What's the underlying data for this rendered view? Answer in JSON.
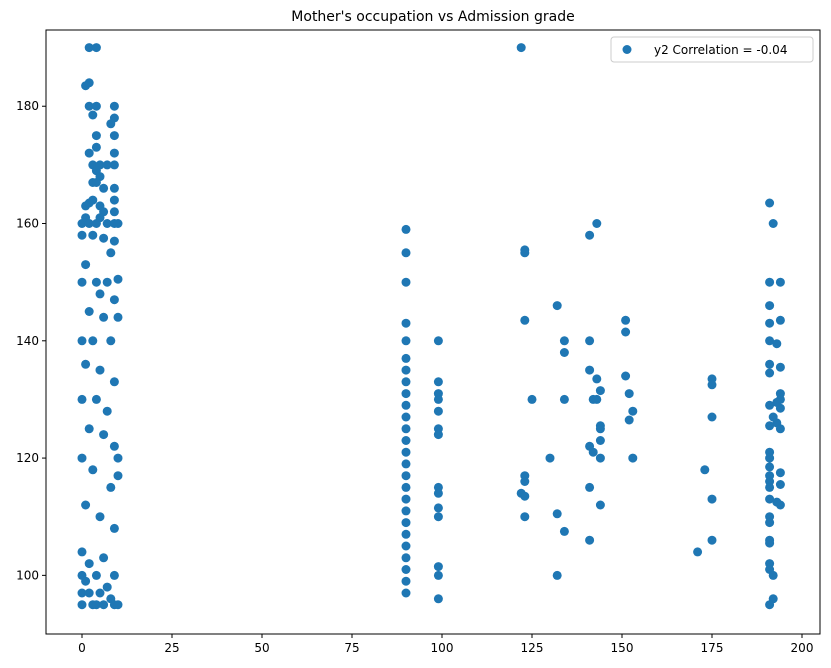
{
  "chart_data": {
    "type": "scatter",
    "title": "Mother's occupation vs Admission grade",
    "xlabel": "",
    "ylabel": "",
    "xlim": [
      -10,
      205
    ],
    "ylim": [
      90,
      193
    ],
    "x_ticks": [
      0,
      25,
      50,
      75,
      100,
      125,
      150,
      175,
      200
    ],
    "y_ticks": [
      100,
      120,
      140,
      160,
      180
    ],
    "grid": false,
    "legend_position": "top-right",
    "point_color": "#1f77b4",
    "series": [
      {
        "name": "y2 Correlation = -0.04",
        "points": [
          [
            2,
            190
          ],
          [
            4,
            190
          ],
          [
            1,
            183.5
          ],
          [
            2,
            184
          ],
          [
            2,
            180
          ],
          [
            4,
            180
          ],
          [
            3,
            178.5
          ],
          [
            9,
            180
          ],
          [
            9,
            178
          ],
          [
            8,
            177
          ],
          [
            9,
            175
          ],
          [
            4,
            175
          ],
          [
            4,
            173
          ],
          [
            2,
            172
          ],
          [
            9,
            172
          ],
          [
            3,
            170
          ],
          [
            5,
            170
          ],
          [
            7,
            170
          ],
          [
            9,
            170
          ],
          [
            4,
            169
          ],
          [
            5,
            168
          ],
          [
            3,
            167
          ],
          [
            4,
            167
          ],
          [
            6,
            166
          ],
          [
            9,
            166
          ],
          [
            1,
            163
          ],
          [
            2,
            163.5
          ],
          [
            3,
            164
          ],
          [
            5,
            163
          ],
          [
            6,
            162
          ],
          [
            9,
            164
          ],
          [
            9,
            162
          ],
          [
            0,
            160
          ],
          [
            1,
            161
          ],
          [
            2,
            160
          ],
          [
            4,
            160
          ],
          [
            5,
            161
          ],
          [
            7,
            160
          ],
          [
            9,
            160
          ],
          [
            10,
            160
          ],
          [
            0,
            158
          ],
          [
            3,
            158
          ],
          [
            6,
            157.5
          ],
          [
            9,
            157
          ],
          [
            8,
            155
          ],
          [
            1,
            153
          ],
          [
            0,
            150
          ],
          [
            4,
            150
          ],
          [
            7,
            150
          ],
          [
            10,
            150.5
          ],
          [
            5,
            148
          ],
          [
            9,
            147
          ],
          [
            2,
            145
          ],
          [
            6,
            144
          ],
          [
            10,
            144
          ],
          [
            0,
            140
          ],
          [
            3,
            140
          ],
          [
            8,
            140
          ],
          [
            1,
            136
          ],
          [
            5,
            135
          ],
          [
            9,
            133
          ],
          [
            0,
            130
          ],
          [
            4,
            130
          ],
          [
            7,
            128
          ],
          [
            10,
            120
          ],
          [
            10,
            117
          ],
          [
            2,
            125
          ],
          [
            6,
            124
          ],
          [
            9,
            122
          ],
          [
            0,
            120
          ],
          [
            3,
            118
          ],
          [
            8,
            115
          ],
          [
            1,
            112
          ],
          [
            5,
            110
          ],
          [
            9,
            108
          ],
          [
            0,
            104
          ],
          [
            2,
            102
          ],
          [
            6,
            103
          ],
          [
            0,
            100
          ],
          [
            4,
            100
          ],
          [
            9,
            100
          ],
          [
            1,
            99
          ],
          [
            7,
            98
          ],
          [
            0,
            97
          ],
          [
            2,
            97
          ],
          [
            5,
            97
          ],
          [
            8,
            96
          ],
          [
            0,
            95
          ],
          [
            3,
            95
          ],
          [
            4,
            95
          ],
          [
            6,
            95
          ],
          [
            9,
            95
          ],
          [
            10,
            95
          ],
          [
            90,
            159
          ],
          [
            90,
            155
          ],
          [
            90,
            150
          ],
          [
            90,
            143
          ],
          [
            90,
            140
          ],
          [
            90,
            137
          ],
          [
            90,
            135
          ],
          [
            90,
            133
          ],
          [
            90,
            131
          ],
          [
            90,
            129
          ],
          [
            90,
            127
          ],
          [
            90,
            125
          ],
          [
            90,
            123
          ],
          [
            90,
            121
          ],
          [
            90,
            119
          ],
          [
            90,
            117
          ],
          [
            90,
            115
          ],
          [
            90,
            113
          ],
          [
            90,
            111
          ],
          [
            90,
            109
          ],
          [
            90,
            107
          ],
          [
            90,
            105
          ],
          [
            90,
            103
          ],
          [
            90,
            101
          ],
          [
            90,
            99
          ],
          [
            90,
            97
          ],
          [
            99,
            140
          ],
          [
            99,
            133
          ],
          [
            99,
            131
          ],
          [
            99,
            130
          ],
          [
            99,
            128
          ],
          [
            99,
            125
          ],
          [
            99,
            124
          ],
          [
            99,
            115
          ],
          [
            99,
            114
          ],
          [
            99,
            111.5
          ],
          [
            99,
            110
          ],
          [
            99,
            101.5
          ],
          [
            99,
            100
          ],
          [
            99,
            96
          ],
          [
            122,
            190
          ],
          [
            123,
            155.5
          ],
          [
            123,
            155
          ],
          [
            123,
            143.5
          ],
          [
            125,
            130
          ],
          [
            123,
            117
          ],
          [
            123,
            116
          ],
          [
            122,
            114
          ],
          [
            123,
            113.5
          ],
          [
            123,
            110
          ],
          [
            130,
            120
          ],
          [
            132,
            146
          ],
          [
            132,
            110.5
          ],
          [
            132,
            100
          ],
          [
            134,
            140
          ],
          [
            134,
            138
          ],
          [
            134,
            130
          ],
          [
            134,
            107.5
          ],
          [
            141,
            158
          ],
          [
            143,
            160
          ],
          [
            141,
            140
          ],
          [
            141,
            135
          ],
          [
            143,
            133.5
          ],
          [
            144,
            131.5
          ],
          [
            142,
            130
          ],
          [
            143,
            130
          ],
          [
            144,
            125.5
          ],
          [
            144,
            125
          ],
          [
            144,
            123
          ],
          [
            141,
            122
          ],
          [
            142,
            121
          ],
          [
            144,
            120
          ],
          [
            141,
            115
          ],
          [
            144,
            112
          ],
          [
            141,
            106
          ],
          [
            151,
            143.5
          ],
          [
            151,
            141.5
          ],
          [
            151,
            134
          ],
          [
            152,
            131
          ],
          [
            153,
            128
          ],
          [
            152,
            126.5
          ],
          [
            153,
            120
          ],
          [
            171,
            104
          ],
          [
            173,
            118
          ],
          [
            175,
            133.5
          ],
          [
            175,
            132.5
          ],
          [
            175,
            127
          ],
          [
            175,
            113
          ],
          [
            175,
            106
          ],
          [
            191,
            163.5
          ],
          [
            192,
            160
          ],
          [
            191,
            150
          ],
          [
            194,
            150
          ],
          [
            191,
            146
          ],
          [
            191,
            143
          ],
          [
            194,
            143.5
          ],
          [
            191,
            140
          ],
          [
            193,
            139.5
          ],
          [
            191,
            136
          ],
          [
            191,
            134.5
          ],
          [
            194,
            135.5
          ],
          [
            194,
            131
          ],
          [
            194,
            130
          ],
          [
            193,
            129.5
          ],
          [
            191,
            129
          ],
          [
            194,
            128.5
          ],
          [
            192,
            127
          ],
          [
            193,
            126
          ],
          [
            191,
            125.5
          ],
          [
            194,
            125
          ],
          [
            191,
            121
          ],
          [
            191,
            120
          ],
          [
            191,
            118.5
          ],
          [
            191,
            117
          ],
          [
            194,
            117.5
          ],
          [
            191,
            116
          ],
          [
            191,
            115
          ],
          [
            194,
            115.5
          ],
          [
            191,
            113
          ],
          [
            193,
            112.5
          ],
          [
            194,
            112
          ],
          [
            191,
            110
          ],
          [
            191,
            109
          ],
          [
            191,
            106
          ],
          [
            191,
            105.5
          ],
          [
            191,
            102
          ],
          [
            191,
            101
          ],
          [
            192,
            100
          ],
          [
            192,
            96
          ],
          [
            191,
            95
          ]
        ]
      }
    ]
  }
}
